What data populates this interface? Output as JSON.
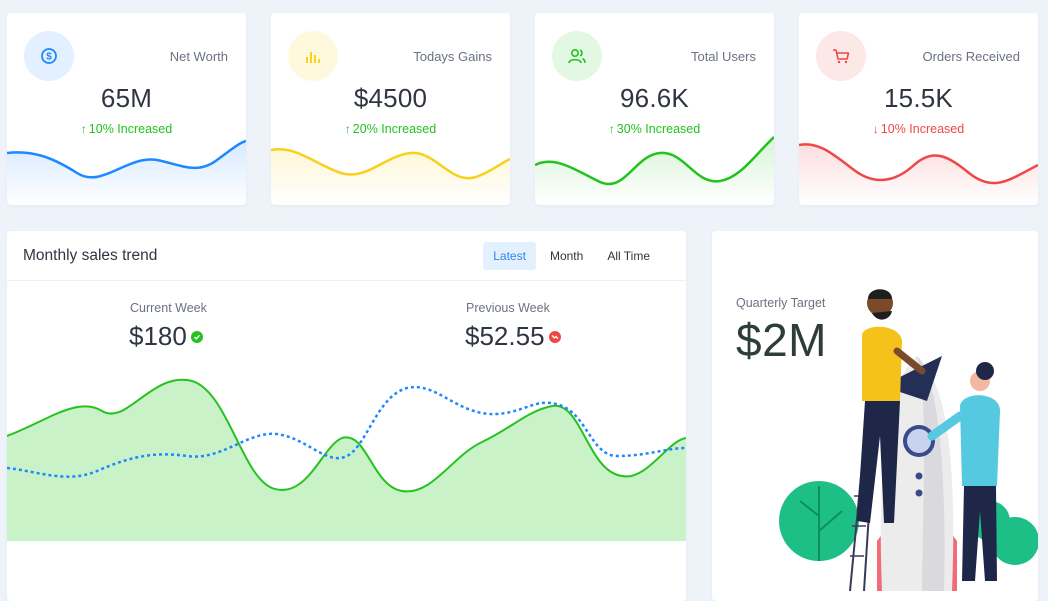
{
  "stats": [
    {
      "label": "Net Worth",
      "value": "65M",
      "direction": "up",
      "change": "10% Increased",
      "icon": "currency-exchange-icon",
      "color": "#1e88ff",
      "tint": "#e3f0ff"
    },
    {
      "label": "Todays Gains",
      "value": "$4500",
      "direction": "up",
      "change": "20% Increased",
      "icon": "bar-chart-icon",
      "color": "#f7d11b",
      "tint": "#fef8dc"
    },
    {
      "label": "Total Users",
      "value": "96.6K",
      "direction": "up",
      "change": "30% Increased",
      "icon": "users-icon",
      "color": "#22c31e",
      "tint": "#e3f8e3"
    },
    {
      "label": "Orders Received",
      "value": "15.5K",
      "direction": "down",
      "change": "10% Increased",
      "icon": "cart-icon",
      "color": "#ef4747",
      "tint": "#fde8e8"
    }
  ],
  "trend": {
    "title": "Monthly sales trend",
    "tabs": [
      "Latest",
      "Month",
      "All Time"
    ],
    "active_tab": "Latest",
    "current_week_label": "Current Week",
    "current_week_value": "$180",
    "previous_week_label": "Previous Week",
    "previous_week_value": "$52.55",
    "colors": {
      "current": "#27c21f",
      "previous": "#1e88ff",
      "fill": "#c9f2c8"
    }
  },
  "quarter": {
    "label": "Quarterly Target",
    "value": "$2M"
  }
}
